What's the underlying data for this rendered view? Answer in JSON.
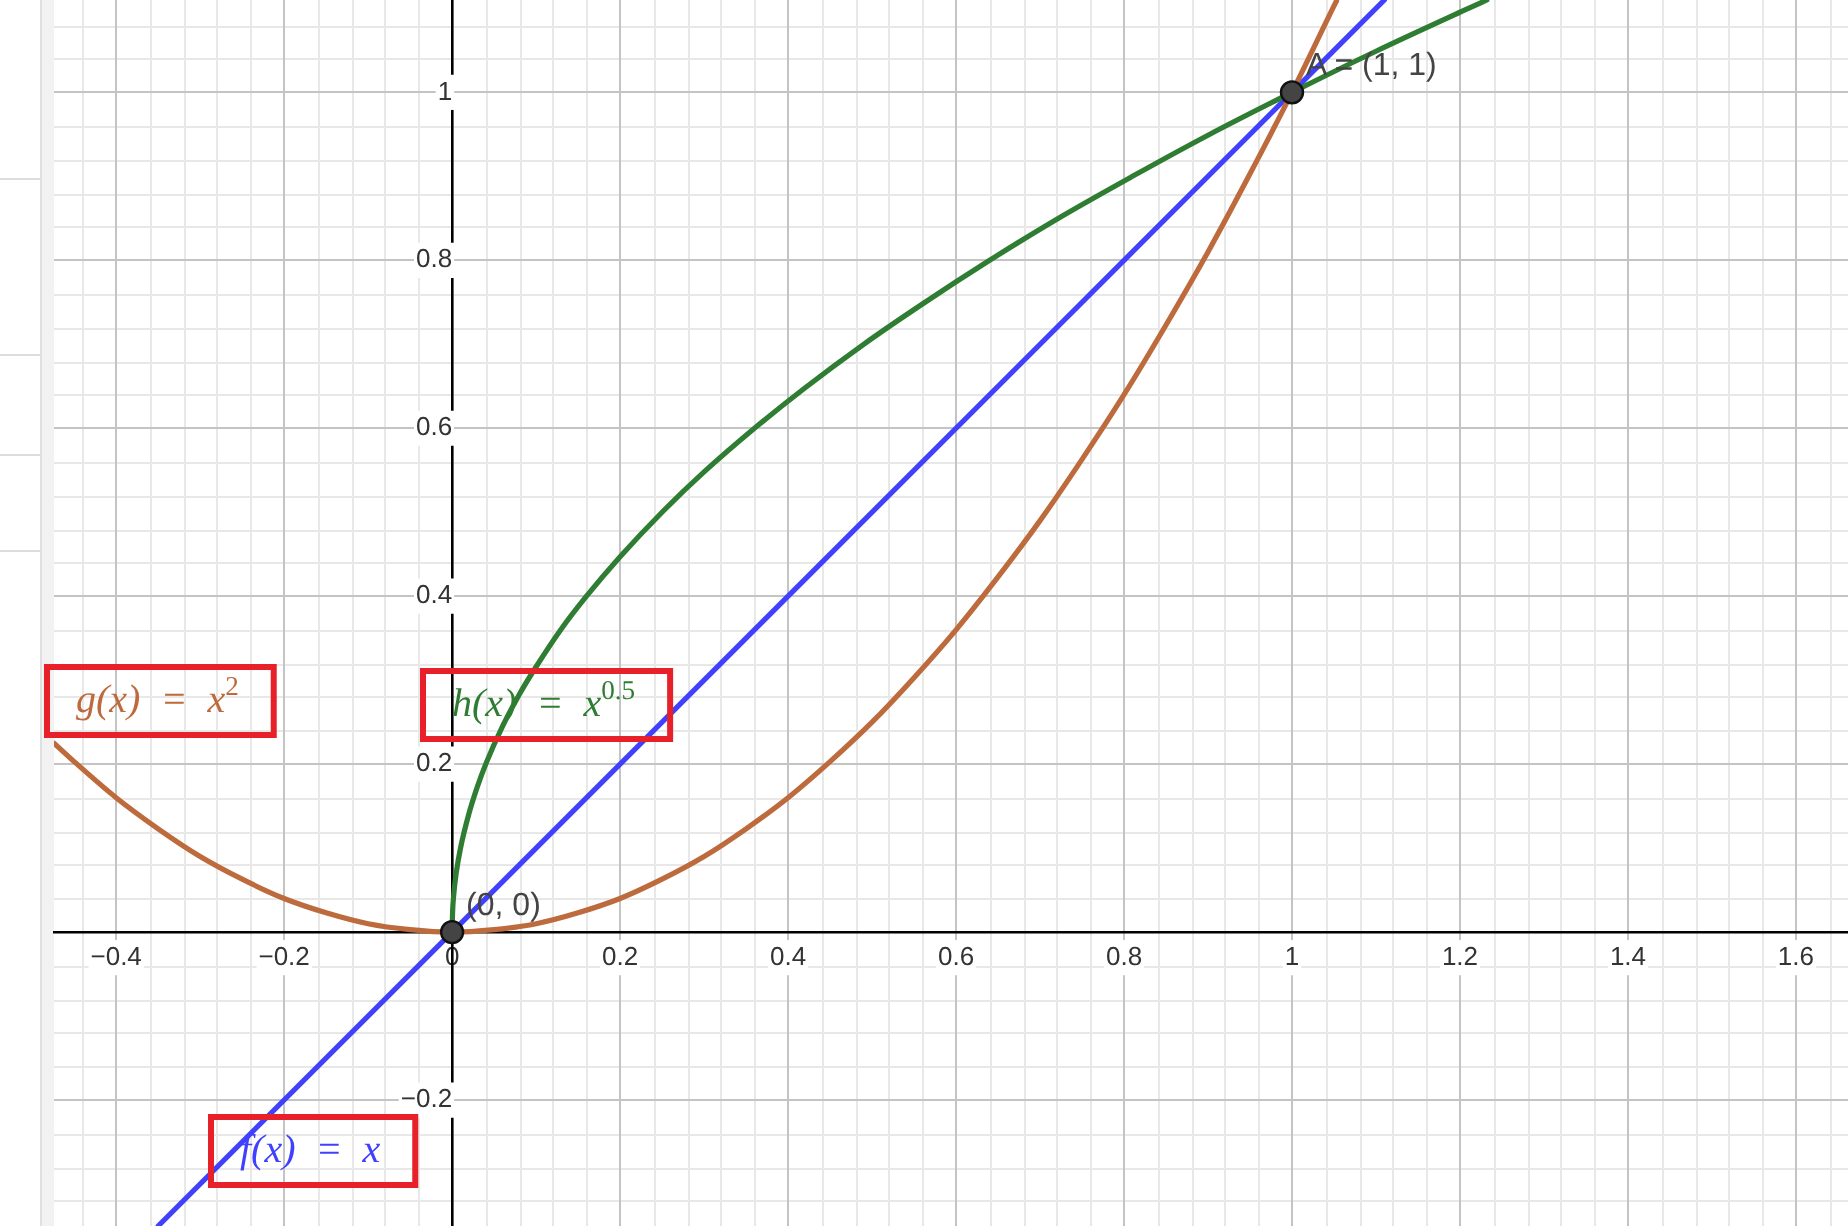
{
  "chart_data": {
    "type": "line",
    "xlim": [
      -0.474,
      1.662
    ],
    "ylim": [
      -0.35,
      1.11
    ],
    "xticks": [
      {
        "value": -0.4,
        "label": "−0.4"
      },
      {
        "value": -0.2,
        "label": "−0.2"
      },
      0,
      0.2,
      0.4,
      0.6,
      0.8,
      1,
      1.2,
      1.4,
      1.6
    ],
    "yticks": [
      {
        "value": -0.2,
        "label": "−0.2"
      },
      {
        "value": 0,
        "label": null
      },
      0.2,
      0.4,
      0.6,
      0.8,
      1
    ],
    "grid": true,
    "series": [
      {
        "name": "f(x) = x",
        "color": "#4040ff",
        "x": [
          -0.35,
          0,
          1,
          1.11
        ],
        "values": [
          -0.35,
          0,
          1,
          1.11
        ]
      },
      {
        "name": "g(x) = x$^{2}$",
        "color": "#bd6a3d",
        "x": [
          -0.474,
          -0.45,
          -0.4,
          -0.35,
          -0.3,
          -0.25,
          -0.2,
          -0.15,
          -0.1,
          -0.05,
          0,
          0.05,
          0.1,
          0.15,
          0.2,
          0.25,
          0.3,
          0.35,
          0.4,
          0.45,
          0.5,
          0.55,
          0.6,
          0.65,
          0.7,
          0.75,
          0.8,
          0.85,
          0.9,
          0.95,
          1,
          1.05,
          1.053
        ],
        "values": [
          0.225,
          0.203,
          0.16,
          0.123,
          0.09,
          0.063,
          0.04,
          0.023,
          0.01,
          0.003,
          0,
          0.003,
          0.01,
          0.023,
          0.04,
          0.063,
          0.09,
          0.123,
          0.16,
          0.203,
          0.25,
          0.303,
          0.36,
          0.423,
          0.49,
          0.563,
          0.64,
          0.723,
          0.81,
          0.903,
          1,
          1.103,
          1.109
        ]
      },
      {
        "name": "h(x) = x$^{0.5}$",
        "color": "#2e7d32",
        "x": [
          0,
          0.0005,
          0.002,
          0.005,
          0.01,
          0.02,
          0.03,
          0.04,
          0.06,
          0.08,
          0.1,
          0.13,
          0.16,
          0.2,
          0.25,
          0.3,
          0.36,
          0.42,
          0.49,
          0.56,
          0.64,
          0.72,
          0.81,
          0.9,
          1,
          1.1,
          1.21,
          1.232
        ],
        "values": [
          0,
          0.022,
          0.045,
          0.071,
          0.1,
          0.141,
          0.173,
          0.2,
          0.245,
          0.283,
          0.316,
          0.361,
          0.4,
          0.447,
          0.5,
          0.548,
          0.6,
          0.648,
          0.7,
          0.748,
          0.8,
          0.849,
          0.9,
          0.949,
          1,
          1.049,
          1.1,
          1.11
        ]
      },
      {
        "type": "scatter",
        "color": "#444444",
        "marker": "circle",
        "x": [
          0,
          1
        ],
        "values": [
          0,
          1
        ],
        "value_labels": [
          "(0, 0)",
          "A = (1, 1)"
        ]
      }
    ]
  }
}
